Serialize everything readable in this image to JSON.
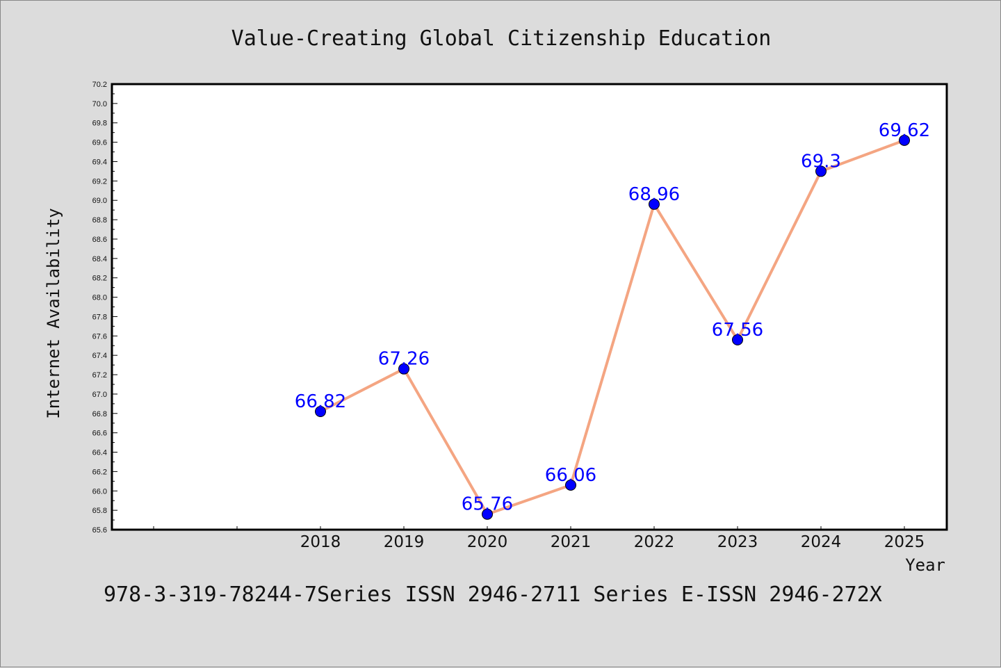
{
  "chart_data": {
    "type": "line",
    "title": "Value-Creating Global Citizenship Education",
    "xlabel": "Year",
    "ylabel": "Internet Availability",
    "x": [
      "2018",
      "2019",
      "2020",
      "2021",
      "2022",
      "2023",
      "2024",
      "2025"
    ],
    "values": [
      66.82,
      67.26,
      65.76,
      66.06,
      68.96,
      67.56,
      69.3,
      69.62
    ],
    "data_labels": [
      "66.82",
      "67.26",
      "65.76",
      "66.06",
      "68.96",
      "67.56",
      "69.3",
      "69.62"
    ],
    "ylim": [
      65.6,
      70.2
    ],
    "ytick_step": 0.2,
    "grid": false,
    "legend": "none",
    "line_color": "#f4a582",
    "marker_color": "#0000ff",
    "label_color": "#0000ff",
    "plot_background": "#ffffff",
    "page_background": "#dcdcdc"
  },
  "footer": {
    "text": "978-3-319-78244-7Series ISSN 2946-2711 Series E-ISSN 2946-272X"
  }
}
